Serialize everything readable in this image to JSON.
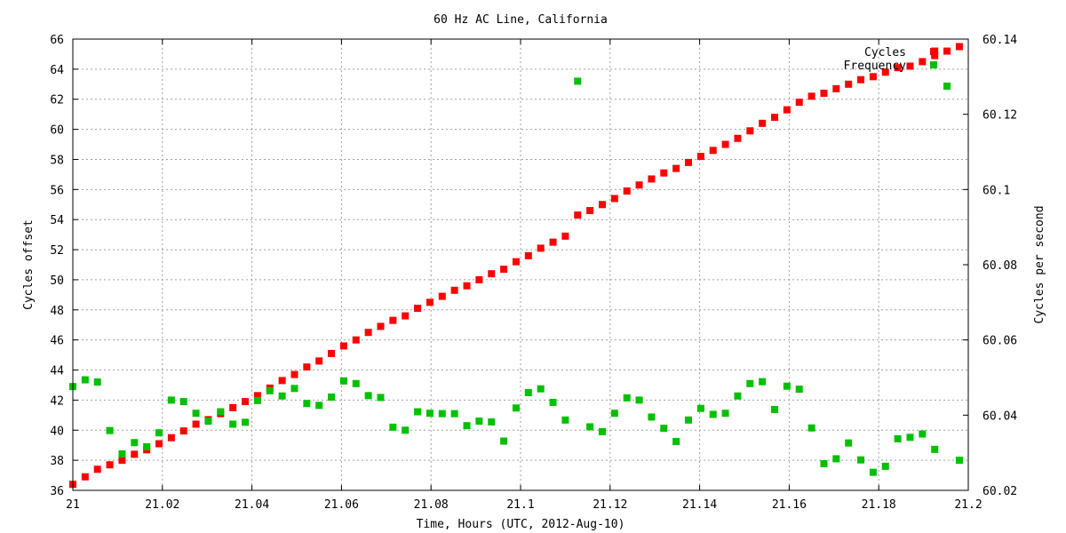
{
  "chart_data": {
    "type": "scatter",
    "title": "60 Hz AC Line, California",
    "xlabel": "Time, Hours (UTC, 2012-Aug-10)",
    "ylabel": "Cycles offset",
    "y2label": "Cycles per second",
    "xlim": [
      21,
      21.2
    ],
    "ylim": [
      36,
      66
    ],
    "y2lim": [
      60.02,
      60.14
    ],
    "grid": true,
    "legend_position": "top-right",
    "x_ticks": [
      "21",
      "21.02",
      "21.04",
      "21.06",
      "21.08",
      "21.1",
      "21.12",
      "21.14",
      "21.16",
      "21.18",
      "21.2"
    ],
    "y_ticks": [
      "36",
      "38",
      "40",
      "42",
      "44",
      "46",
      "48",
      "50",
      "52",
      "54",
      "56",
      "58",
      "60",
      "62",
      "64",
      "66"
    ],
    "y2_ticks": [
      "60.02",
      "60.04",
      "60.06",
      "60.08",
      "60.1",
      "60.12",
      "60.14"
    ],
    "series": [
      {
        "name": "Cycles",
        "color": "#ff0000",
        "axis": "left",
        "x": [
          21.0,
          21.00275,
          21.0055,
          21.00825,
          21.011,
          21.01375,
          21.0165,
          21.01925,
          21.022,
          21.02475,
          21.0275,
          21.03025,
          21.033,
          21.03575,
          21.0385,
          21.04125,
          21.044,
          21.04675,
          21.0495,
          21.05225,
          21.055,
          21.05775,
          21.0605,
          21.06325,
          21.066,
          21.06875,
          21.0715,
          21.07425,
          21.077,
          21.07975,
          21.0825,
          21.08525,
          21.088,
          21.09075,
          21.0935,
          21.09625,
          21.099,
          21.10175,
          21.1045,
          21.10725,
          21.11,
          21.11275,
          21.1155,
          21.11825,
          21.121,
          21.12375,
          21.1265,
          21.12925,
          21.132,
          21.13475,
          21.1375,
          21.14025,
          21.143,
          21.14575,
          21.1485,
          21.15125,
          21.154,
          21.15675,
          21.1595,
          21.16225,
          21.165,
          21.16775,
          21.1705,
          21.17325,
          21.176,
          21.17875,
          21.1815,
          21.18425,
          21.187,
          21.18975,
          21.1925,
          21.1925,
          21.19525,
          21.198
        ],
        "y": [
          36.4,
          36.9,
          37.4,
          37.7,
          38.0,
          38.4,
          38.7,
          39.1,
          39.5,
          39.95,
          40.4,
          40.7,
          41.1,
          41.5,
          41.9,
          42.3,
          42.8,
          43.3,
          43.7,
          44.2,
          44.6,
          45.1,
          45.6,
          46.0,
          46.5,
          46.9,
          47.3,
          47.6,
          48.1,
          48.5,
          48.9,
          49.3,
          49.6,
          50.0,
          50.4,
          50.7,
          51.2,
          51.6,
          52.1,
          52.5,
          52.9,
          54.3,
          54.6,
          55.0,
          55.4,
          55.9,
          56.3,
          56.7,
          57.1,
          57.4,
          57.8,
          58.2,
          58.6,
          59.0,
          59.4,
          59.9,
          60.4,
          60.8,
          61.3,
          61.8,
          62.2,
          62.4,
          62.7,
          63.0,
          63.3,
          63.5,
          63.8,
          64.1,
          64.2,
          64.5,
          64.9,
          65.2,
          65.2,
          65.5
        ]
      },
      {
        "name": "Frequency",
        "color": "#00c000",
        "axis": "right",
        "x": [
          21.0,
          21.00275,
          21.0055,
          21.00825,
          21.011,
          21.01375,
          21.0165,
          21.01925,
          21.022,
          21.02475,
          21.0275,
          21.03025,
          21.033,
          21.03575,
          21.0385,
          21.04125,
          21.044,
          21.04675,
          21.0495,
          21.05225,
          21.055,
          21.05775,
          21.0605,
          21.06325,
          21.066,
          21.06875,
          21.0715,
          21.07425,
          21.077,
          21.07975,
          21.0825,
          21.08525,
          21.088,
          21.09075,
          21.0935,
          21.09625,
          21.099,
          21.10175,
          21.1045,
          21.10725,
          21.11,
          21.11275,
          21.1155,
          21.11825,
          21.121,
          21.12375,
          21.1265,
          21.12925,
          21.132,
          21.13475,
          21.1375,
          21.14025,
          21.143,
          21.14575,
          21.1485,
          21.15125,
          21.154,
          21.15675,
          21.1595,
          21.16225,
          21.165,
          21.16775,
          21.1705,
          21.17325,
          21.176,
          21.17875,
          21.1815,
          21.18425,
          21.187,
          21.18975,
          21.1925,
          21.19525,
          21.198
        ],
        "y": [
          60.0476,
          60.0494,
          60.0488,
          60.0359,
          60.0297,
          60.0327,
          60.0316,
          60.0353,
          60.044,
          60.0436,
          60.0405,
          60.0384,
          60.0409,
          60.0376,
          60.0381,
          60.0439,
          60.0465,
          60.0451,
          60.0471,
          60.0431,
          60.0426,
          60.0448,
          60.0491,
          60.0484,
          60.0452,
          60.0447,
          60.0368,
          60.036,
          60.0409,
          60.0405,
          60.0404,
          60.0404,
          60.0372,
          60.0384,
          60.0382,
          60.0331,
          60.0419,
          60.046,
          60.047,
          60.0434,
          60.0387,
          60.1288,
          60.0369,
          60.0356,
          60.0405,
          60.0446,
          60.044,
          60.0395,
          60.0365,
          60.033,
          60.0387,
          60.0418,
          60.0402,
          60.0405,
          60.0451,
          60.0484,
          60.0489,
          60.0415,
          60.0477,
          60.0469,
          60.0366,
          60.0271,
          60.0284,
          60.0326,
          60.0281,
          60.0248,
          60.0264,
          60.0337,
          60.0341,
          60.035,
          60.0309,
          60.1275,
          60.028
        ]
      }
    ]
  }
}
